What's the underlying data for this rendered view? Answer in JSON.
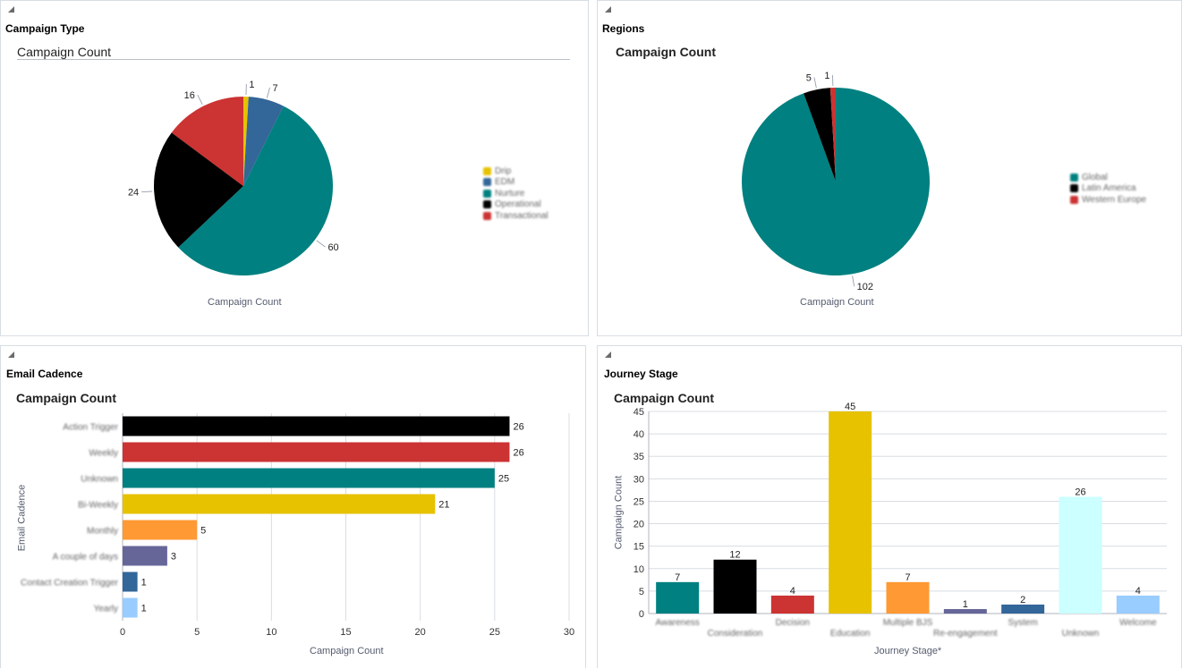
{
  "panels": {
    "campaign_type": {
      "title": "Campaign Type",
      "chart_title": "Campaign Count",
      "axis_label": "Campaign Count"
    },
    "regions": {
      "title": "Regions",
      "chart_title": "Campaign Count",
      "axis_label": "Campaign Count"
    },
    "email_cadence": {
      "title": "Email Cadence",
      "chart_title": "Campaign Count",
      "x_label": "Campaign Count",
      "y_label": "Email Cadence"
    },
    "journey_stage": {
      "title": "Journey Stage",
      "chart_title": "Campaign Count",
      "x_label": "Journey Stage*",
      "y_label": "Campaign Count"
    }
  },
  "chart_data": [
    {
      "type": "pie",
      "title": "Campaign Count",
      "categories": [
        "Drip",
        "EDM",
        "Nurture",
        "Operational",
        "Transactional"
      ],
      "values": [
        1,
        7,
        60,
        24,
        16
      ],
      "colors": [
        "#e6c200",
        "#336699",
        "#008080",
        "#000000",
        "#cc3333"
      ],
      "legend": "right"
    },
    {
      "type": "pie",
      "title": "Campaign Count",
      "categories": [
        "Global",
        "Latin America",
        "Western Europe"
      ],
      "values": [
        102,
        5,
        1
      ],
      "colors": [
        "#008080",
        "#000000",
        "#cc3333"
      ],
      "legend": "right"
    },
    {
      "type": "bar",
      "orientation": "horizontal",
      "title": "Campaign Count",
      "categories": [
        "Action Trigger",
        "Weekly",
        "Unknown",
        "Bi-Weekly",
        "Monthly",
        "A couple of days",
        "Contact Creation Trigger",
        "Yearly"
      ],
      "values": [
        26,
        26,
        25,
        21,
        5,
        3,
        1,
        1
      ],
      "colors": [
        "#000000",
        "#cc3333",
        "#008080",
        "#e6c200",
        "#ff9933",
        "#666699",
        "#336699",
        "#99ccff"
      ],
      "xlabel": "Campaign Count",
      "ylabel": "Email Cadence",
      "xlim": [
        0,
        30
      ],
      "xticks": [
        0,
        5,
        10,
        15,
        20,
        25,
        30
      ],
      "grid": true
    },
    {
      "type": "bar",
      "orientation": "vertical",
      "title": "Campaign Count",
      "categories": [
        "Awareness",
        "Consideration",
        "Decision",
        "Education",
        "Multiple BJS",
        "Re-engagement",
        "System",
        "Unknown",
        "Welcome"
      ],
      "values": [
        7,
        12,
        4,
        45,
        7,
        1,
        2,
        26,
        4
      ],
      "colors": [
        "#008080",
        "#000000",
        "#cc3333",
        "#e6c200",
        "#ff9933",
        "#666699",
        "#336699",
        "#ccffff",
        "#99ccff"
      ],
      "xlabel": "Journey Stage*",
      "ylabel": "Campaign Count",
      "ylim": [
        0,
        45
      ],
      "yticks": [
        0,
        5,
        10,
        15,
        20,
        25,
        30,
        35,
        40,
        45
      ],
      "grid": true
    }
  ]
}
